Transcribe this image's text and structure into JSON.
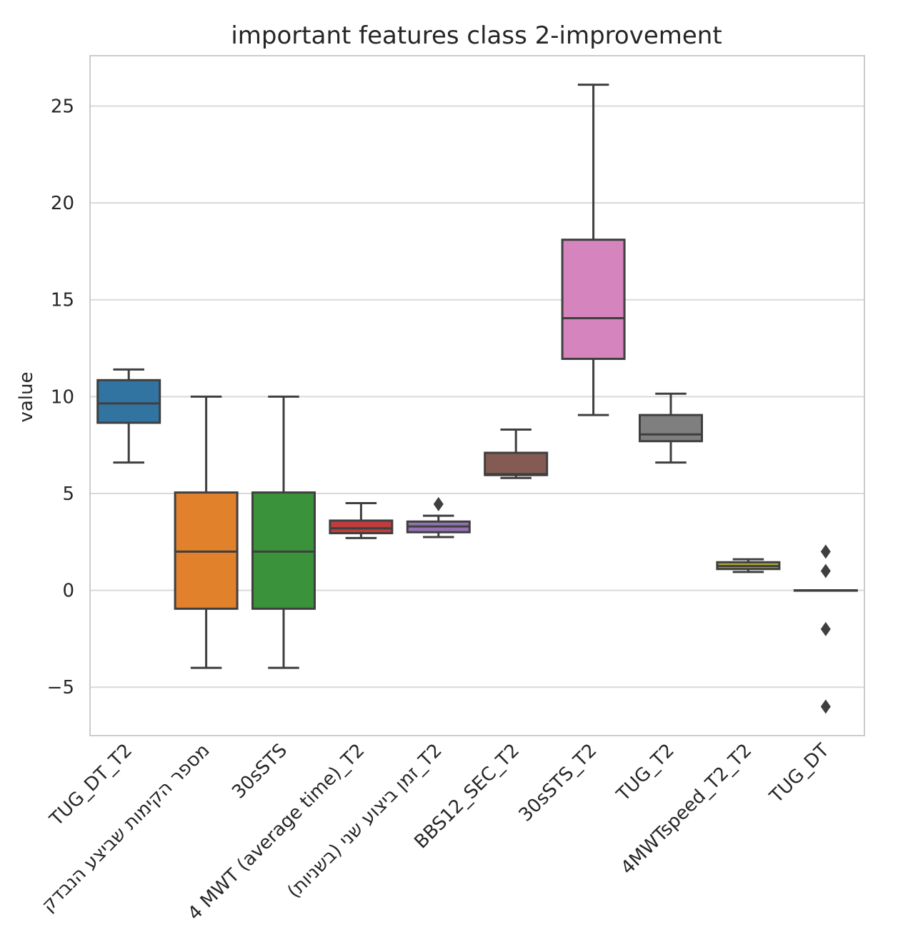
{
  "chart_data": {
    "type": "box",
    "title": "important features class 2-improvement",
    "xlabel": "",
    "ylabel": "value",
    "ylim": [
      -7.5,
      27.6
    ],
    "yticks": [
      -5,
      0,
      5,
      10,
      15,
      20,
      25
    ],
    "ytick_labels": [
      "−5",
      "0",
      "5",
      "10",
      "15",
      "20",
      "25"
    ],
    "grid": true,
    "categories": [
      "TUG_DT_T2",
      "מספר הקימות שביצע הנבדק",
      "30sSTS",
      "4 MWT (average time)_T2",
      "זמן ביצוע שני (בשניות)_T2",
      "BBS12_SEC_T2",
      "30sSTS_T2",
      "TUG_T2",
      "4MWTspeed_T2_T2",
      "TUG_DT"
    ],
    "boxes": [
      {
        "whisker_low": 6.6,
        "q1": 8.65,
        "median": 9.65,
        "q3": 10.85,
        "whisker_high": 11.4,
        "outliers": [],
        "color": "#3274a1"
      },
      {
        "whisker_low": -4,
        "q1": -0.95,
        "median": 2,
        "q3": 5.05,
        "whisker_high": 10,
        "outliers": [],
        "color": "#e1812c"
      },
      {
        "whisker_low": -4,
        "q1": -0.95,
        "median": 2,
        "q3": 5.05,
        "whisker_high": 10,
        "outliers": [],
        "color": "#3a923a"
      },
      {
        "whisker_low": 2.7,
        "q1": 2.95,
        "median": 3.2,
        "q3": 3.6,
        "whisker_high": 4.5,
        "outliers": [],
        "color": "#c03d3e"
      },
      {
        "whisker_low": 2.75,
        "q1": 3.0,
        "median": 3.3,
        "q3": 3.55,
        "whisker_high": 3.85,
        "outliers": [
          4.45
        ],
        "color": "#9372b2"
      },
      {
        "whisker_low": 5.8,
        "q1": 5.95,
        "median": 6.0,
        "q3": 7.1,
        "whisker_high": 8.3,
        "outliers": [],
        "color": "#845b53"
      },
      {
        "whisker_low": 9.05,
        "q1": 11.95,
        "median": 14.05,
        "q3": 18.1,
        "whisker_high": 26.1,
        "outliers": [],
        "color": "#d684bd"
      },
      {
        "whisker_low": 6.6,
        "q1": 7.7,
        "median": 8.05,
        "q3": 9.05,
        "whisker_high": 10.15,
        "outliers": [],
        "color": "#7f7f7f"
      },
      {
        "whisker_low": 0.95,
        "q1": 1.1,
        "median": 1.25,
        "q3": 1.45,
        "whisker_high": 1.6,
        "outliers": [],
        "color": "#a9aa35"
      },
      {
        "whisker_low": 0,
        "q1": 0,
        "median": 0,
        "q3": 0,
        "whisker_high": 0,
        "outliers": [
          2,
          1,
          -2,
          -6
        ],
        "color": "#2ea1ad"
      }
    ]
  }
}
